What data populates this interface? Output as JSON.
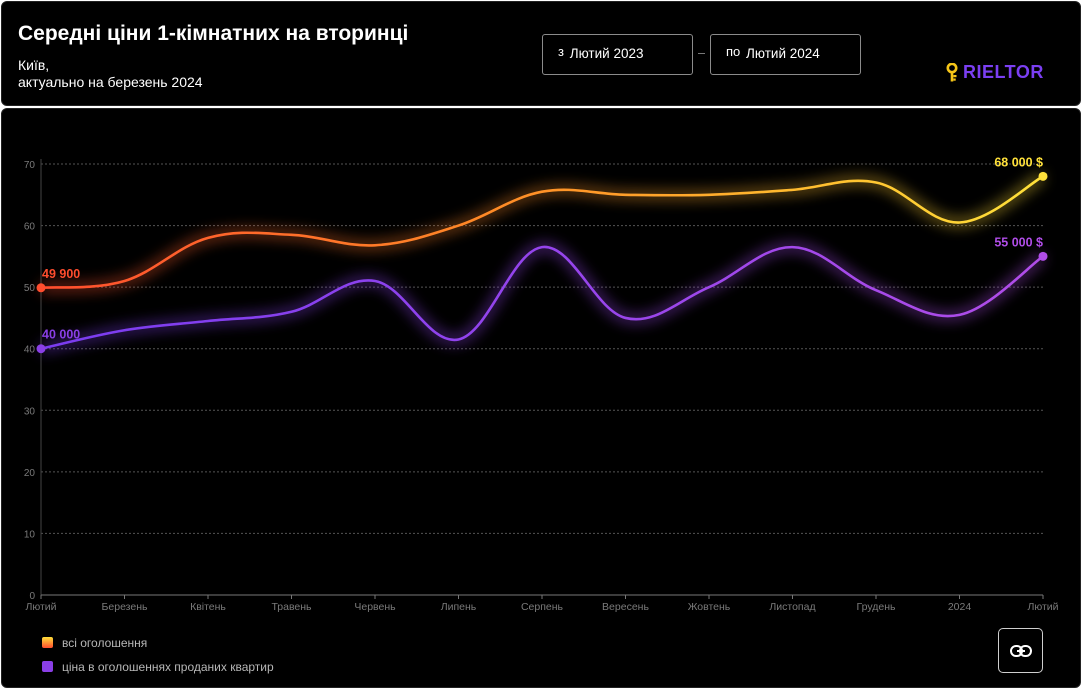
{
  "header": {
    "title": "Середні ціни 1-кімнатних на вторинці",
    "city": "Київ,",
    "actual": "актуально на березень 2024",
    "date_from": {
      "prefix": "з",
      "value": "Лютий 2023"
    },
    "date_to": {
      "prefix": "по",
      "value": "Лютий 2024"
    },
    "logo_text": "RIELTOR",
    "logo_icon": "key-icon"
  },
  "colors": {
    "all_start": "#ff4d2e",
    "all_mid": "#ff8a26",
    "all_end": "#ffe13a",
    "sold": "#8a3fe6",
    "sold_light": "#b04de8",
    "grid": "#555555",
    "axis_text": "#7a7a7a"
  },
  "chart_data": {
    "type": "line",
    "categories": [
      "Лютий",
      "Березень",
      "Квітень",
      "Травень",
      "Червень",
      "Липень",
      "Серпень",
      "Вересень",
      "Жовтень",
      "Листопад",
      "Грудень",
      "2024",
      "Лютий"
    ],
    "ylim": [
      0,
      70
    ],
    "yticks": [
      "0",
      "10",
      "20",
      "30",
      "40",
      "50",
      "60",
      "70"
    ],
    "grid": true,
    "legend_position": "bottom-left",
    "series": [
      {
        "name": "всі оголошення",
        "values": [
          49.9,
          51,
          58,
          58.5,
          56.8,
          60,
          65.5,
          65,
          65,
          65.8,
          67,
          60.5,
          68
        ],
        "start_label": "49 900",
        "end_label": "68 000 $"
      },
      {
        "name": "ціна в оголошеннях проданих квартир",
        "values": [
          40,
          43,
          44.5,
          46,
          51,
          41.5,
          56.5,
          45,
          50,
          56.5,
          49.5,
          45.5,
          55
        ],
        "start_label": "40 000",
        "end_label": "55 000 $"
      }
    ]
  },
  "link_button_icon": "link-icon"
}
